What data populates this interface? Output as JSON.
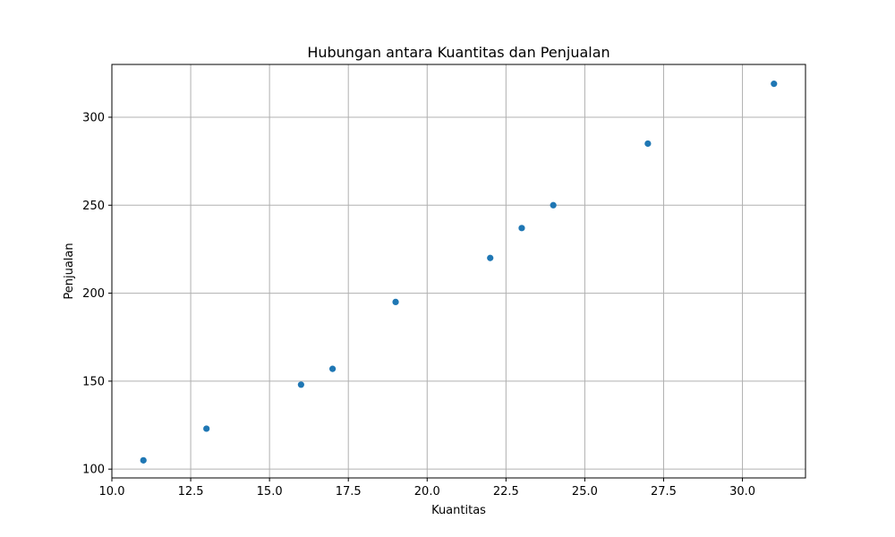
{
  "chart_data": {
    "type": "scatter",
    "title": "Hubungan antara Kuantitas dan Penjualan",
    "xlabel": "Kuantitas",
    "ylabel": "Penjualan",
    "xlim": [
      10.0,
      32.0
    ],
    "ylim": [
      95,
      330
    ],
    "grid": true,
    "x_ticks": [
      10.0,
      12.5,
      15.0,
      17.5,
      20.0,
      22.5,
      25.0,
      27.5,
      30.0
    ],
    "x_tick_labels": [
      "10.0",
      "12.5",
      "15.0",
      "17.5",
      "20.0",
      "22.5",
      "25.0",
      "27.5",
      "30.0"
    ],
    "y_ticks": [
      100,
      150,
      200,
      250,
      300
    ],
    "y_tick_labels": [
      "100",
      "150",
      "200",
      "250",
      "300"
    ],
    "series": [
      {
        "color": "#1f77b4",
        "points": [
          {
            "x": 11,
            "y": 105
          },
          {
            "x": 13,
            "y": 123
          },
          {
            "x": 16,
            "y": 148
          },
          {
            "x": 17,
            "y": 157
          },
          {
            "x": 19,
            "y": 195
          },
          {
            "x": 22,
            "y": 220
          },
          {
            "x": 23,
            "y": 237
          },
          {
            "x": 24,
            "y": 250
          },
          {
            "x": 27,
            "y": 285
          },
          {
            "x": 31,
            "y": 319
          }
        ]
      }
    ]
  }
}
